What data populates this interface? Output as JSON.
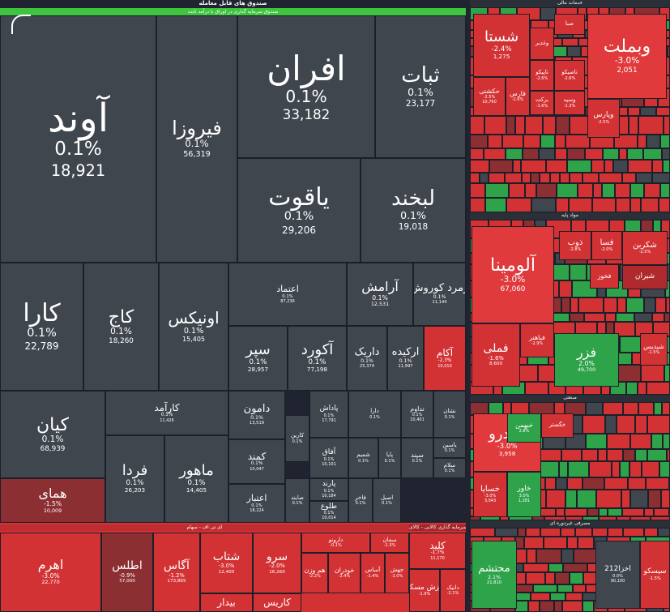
{
  "main_panel": {
    "title": "صندوق های قابل معامله",
    "subtitle": "صندوق سرمایه گذاری در اوراق با درآمد ثابت"
  },
  "tiles": [
    {
      "id": "avand",
      "sym": "آوند",
      "pct": "0.1%",
      "val": "18,921"
    },
    {
      "id": "firouza",
      "sym": "فیروزا",
      "pct": "0.1%",
      "val": "56,319"
    },
    {
      "id": "afran",
      "sym": "افران",
      "pct": "0.1%",
      "val": "33,182"
    },
    {
      "id": "sabat",
      "sym": "ثبات",
      "pct": "0.1%",
      "val": "23,177"
    },
    {
      "id": "yaghoot",
      "sym": "یاقوت",
      "pct": "0.1%",
      "val": "29,206"
    },
    {
      "id": "labkhand",
      "sym": "لبخند",
      "pct": "0.1%",
      "val": "19,018"
    },
    {
      "id": "kara",
      "sym": "کارا",
      "pct": "0.1%",
      "val": "22,789"
    },
    {
      "id": "kaj",
      "sym": "کاج",
      "pct": "0.1%",
      "val": "18,260"
    },
    {
      "id": "onix",
      "sym": "اونیکس",
      "pct": "0.1%",
      "val": "15,405"
    },
    {
      "id": "etemad",
      "sym": "اعتماد",
      "pct": "0.1%",
      "val": "87,236"
    },
    {
      "id": "aramesh",
      "sym": "آرامش",
      "pct": "0.1%",
      "val": "12,531"
    },
    {
      "id": "zomorod",
      "sym": "زمرد کوروش",
      "pct": "0.1%",
      "val": "11,144"
    },
    {
      "id": "separ",
      "sym": "سپر",
      "pct": "0.1%",
      "val": "28,957"
    },
    {
      "id": "akord",
      "sym": "آکورد",
      "pct": "0.1%",
      "val": "77,198"
    },
    {
      "id": "darik",
      "sym": "داریک",
      "pct": "0.1%",
      "val": "25,374"
    },
    {
      "id": "arkideh",
      "sym": "ارکیده",
      "pct": "0.1%",
      "val": "11,997"
    },
    {
      "id": "akam",
      "sym": "آکام",
      "pct": "-2.3%",
      "val": "10,010"
    },
    {
      "id": "kian",
      "sym": "کیان",
      "pct": "0.1%",
      "val": "68,939"
    },
    {
      "id": "karamad",
      "sym": "کارآمد",
      "pct": "0.1%",
      "val": "11,426"
    },
    {
      "id": "damoon",
      "sym": "دامون",
      "pct": "0.1%",
      "val": "13,519"
    },
    {
      "id": "kamand",
      "sym": "کمند",
      "pct": "0.1%",
      "val": "10,047"
    },
    {
      "id": "etebar",
      "sym": "اعتبار",
      "pct": "0.1%",
      "val": "18,224"
    },
    {
      "id": "farda",
      "sym": "فردا",
      "pct": "0.1%",
      "val": "26,203"
    },
    {
      "id": "mahoor",
      "sym": "ماهور",
      "pct": "0.1%",
      "val": "14,405"
    },
    {
      "id": "homay",
      "sym": "همای",
      "pct": "-1.5%",
      "val": "10,009"
    },
    {
      "id": "karin",
      "sym": "کارین",
      "pct": "0.1%",
      "val": ""
    },
    {
      "id": "padash",
      "sym": "پاداش",
      "pct": "0.1%",
      "val": "17,791"
    },
    {
      "id": "dara",
      "sym": "دارا",
      "pct": "0.1%",
      "val": ""
    },
    {
      "id": "tadvin",
      "sym": "تداوم",
      "pct": "0.1%",
      "val": "10,401"
    },
    {
      "id": "nashan",
      "sym": "نشان",
      "pct": "0.1%",
      "val": ""
    },
    {
      "id": "afagh",
      "sym": "آفاق",
      "pct": "0.1%",
      "val": "10,101"
    },
    {
      "id": "shamim",
      "sym": "شمیم",
      "pct": "0.1%",
      "val": ""
    },
    {
      "id": "paya",
      "sym": "پایا",
      "pct": "0.1%",
      "val": ""
    },
    {
      "id": "sepand",
      "sym": "سپند",
      "pct": "0.1%",
      "val": ""
    },
    {
      "id": "yasin",
      "sym": "یاسین",
      "pct": "0.1%",
      "val": ""
    },
    {
      "id": "salam",
      "sym": "سلام",
      "pct": "0.1%",
      "val": ""
    },
    {
      "id": "sayeh",
      "sym": "صایند",
      "pct": "0.1%",
      "val": ""
    },
    {
      "id": "parand",
      "sym": "پارند",
      "pct": "0.1%",
      "val": "10,184"
    },
    {
      "id": "fakher",
      "sym": "فاخر",
      "pct": "0.1%",
      "val": ""
    },
    {
      "id": "asil",
      "sym": "اصیل",
      "pct": "0.1%",
      "val": ""
    },
    {
      "id": "toloo",
      "sym": "طلوع",
      "pct": "0.1%",
      "val": "10,014"
    }
  ],
  "bottom_left": {
    "title": "ای تی اف - سهام",
    "tiles": [
      {
        "id": "ahrom",
        "sym": "اهرم",
        "pct": "-3.0%",
        "val": "22,770"
      },
      {
        "id": "atlas",
        "sym": "اطلس",
        "pct": "-0.9%",
        "val": "57,000"
      },
      {
        "id": "agas",
        "sym": "آگاس",
        "pct": "-1.2%",
        "val": "173,865"
      },
      {
        "id": "shetab",
        "sym": "شتاب",
        "pct": "-3.0%",
        "val": "12,400"
      },
      {
        "id": "sarv",
        "sym": "سرو",
        "pct": "-2.0%",
        "val": "16,260"
      },
      {
        "id": "bidar",
        "sym": "بیدار",
        "pct": "",
        "val": ""
      },
      {
        "id": "karis",
        "sym": "کاریس",
        "pct": "",
        "val": ""
      },
      {
        "id": "daroo",
        "sym": "دارونو",
        "pct": "-0.1%",
        "val": ""
      },
      {
        "id": "khodran",
        "sym": "خودران",
        "pct": "-2.4%",
        "val": ""
      },
      {
        "id": "hamvazn",
        "sym": "هم وزن",
        "pct": "-2.2%",
        "val": ""
      },
      {
        "id": "saman",
        "sym": "سمان",
        "pct": "-1.3%",
        "val": ""
      },
      {
        "id": "asas",
        "sym": "آساس",
        "pct": "-1.4%",
        "val": ""
      },
      {
        "id": "jahesh",
        "sym": "جهش",
        "pct": "-2.0%",
        "val": ""
      }
    ]
  },
  "bottom_mid": {
    "title": "صندوق سرمایه گذاری کالایی - کالای ... ",
    "tiles": [
      {
        "id": "kalid",
        "sym": "کلید",
        "pct": "-1.7%",
        "val": "11,170"
      },
      {
        "id": "arzesh",
        "sym": "ارزش مسکن",
        "pct": "-1.9%",
        "val": ""
      },
      {
        "id": "datik",
        "sym": "دانیک",
        "pct": "-2.1%",
        "val": ""
      }
    ]
  },
  "right_top": {
    "title": "خدمات مالی",
    "sec1": "سرمایه گذاری",
    "sec2": "بانک ها و موسسات اعتباری",
    "tiles": [
      {
        "id": "shasta",
        "sym": "شستا",
        "pct": "-2.4%",
        "val": "1,275"
      },
      {
        "id": "vebmellat",
        "sym": "وبملت",
        "pct": "-3.0%",
        "val": "2,051"
      },
      {
        "id": "hekmat",
        "sym": "حکشتی",
        "pct": "-2.5%",
        "val": "10,760"
      },
      {
        "id": "fars",
        "sym": "فارس",
        "pct": "-2.6%",
        "val": ""
      },
      {
        "id": "vsepah",
        "sym": "وسپه",
        "pct": "-1.3%",
        "val": ""
      },
      {
        "id": "taapik",
        "sym": "تاپیکو",
        "pct": "-2.6%",
        "val": ""
      },
      {
        "id": "tasiko",
        "sym": "تاصیکو",
        "pct": "-2.6%",
        "val": ""
      },
      {
        "id": "barkat",
        "sym": "برکت",
        "pct": "-1.6%",
        "val": ""
      },
      {
        "id": "vpars",
        "sym": "وپارس",
        "pct": "-2.5%",
        "val": ""
      },
      {
        "id": "vghadir",
        "sym": "وغدیر",
        "pct": "",
        "val": ""
      },
      {
        "id": "sabana",
        "sym": "صبا",
        "pct": "",
        "val": ""
      }
    ]
  },
  "right_mid": {
    "title": "مواد پایه",
    "sec1": "تولید فلزات گرانبهای غیرآهنی",
    "sec2": "آهن و فولاد",
    "sec3": "محصولات شیمیایی",
    "tiles": [
      {
        "id": "alomina",
        "sym": "آلومینا",
        "pct": "-3.0%",
        "val": "67,060"
      },
      {
        "id": "fameli",
        "sym": "فملی",
        "pct": "-1.6%",
        "val": "8,600"
      },
      {
        "id": "fazar",
        "sym": "فزر",
        "pct": "2.0%",
        "val": "49,700"
      },
      {
        "id": "fahar",
        "sym": "فباهنر",
        "pct": "-2.9%",
        "val": ""
      },
      {
        "id": "zob",
        "sym": "ذوب",
        "pct": "-2.8%",
        "val": ""
      },
      {
        "id": "fsa",
        "sym": "فسا",
        "pct": "-2.0%",
        "val": ""
      },
      {
        "id": "shekarn",
        "sym": "شکربن",
        "pct": "-2.5%",
        "val": ""
      },
      {
        "id": "shiran",
        "sym": "شیران",
        "pct": "",
        "val": ""
      },
      {
        "id": "shedis",
        "sym": "شیدیس",
        "pct": "-1.5%",
        "val": ""
      },
      {
        "id": "fkhoz",
        "sym": "فخوز",
        "pct": "",
        "val": ""
      }
    ]
  },
  "right_low": {
    "title": "صنعتی",
    "sec1": "مصرفی دوره ای",
    "sec2": "خودرو",
    "sec3": "خدمات فنی",
    "tiles": [
      {
        "id": "khodro",
        "sym": "خودرو",
        "pct": "-3.0%",
        "val": "3,958"
      },
      {
        "id": "khsapa",
        "sym": "خساپا",
        "pct": "-3.0%",
        "val": "3,043"
      },
      {
        "id": "khavar",
        "sym": "خاور",
        "pct": "3.0%",
        "val": "1,281"
      },
      {
        "id": "khbahman",
        "sym": "خبهمن",
        "pct": "2.8%",
        "val": ""
      },
      {
        "id": "khgostar",
        "sym": "خگستر",
        "pct": "",
        "val": ""
      }
    ]
  },
  "right_bottom": {
    "title": "مصرفی غیردوره ای",
    "sec2": "تکنولوژی",
    "sec3": "اوراق درآمد ثابت",
    "tiles": [
      {
        "id": "mohtasham",
        "sym": "محتشم",
        "pct": "2.1%",
        "val": "21,810"
      },
      {
        "id": "akhza212",
        "sym": "اخزا212",
        "pct": "0.0%",
        "val": "90,100"
      },
      {
        "id": "sisco",
        "sym": "سیسکو",
        "pct": "-1.5%",
        "val": ""
      }
    ]
  },
  "colors": {
    "fund": "#40464e",
    "red": "#d33235",
    "green": "#2fa34a",
    "background": "#1f2430"
  }
}
